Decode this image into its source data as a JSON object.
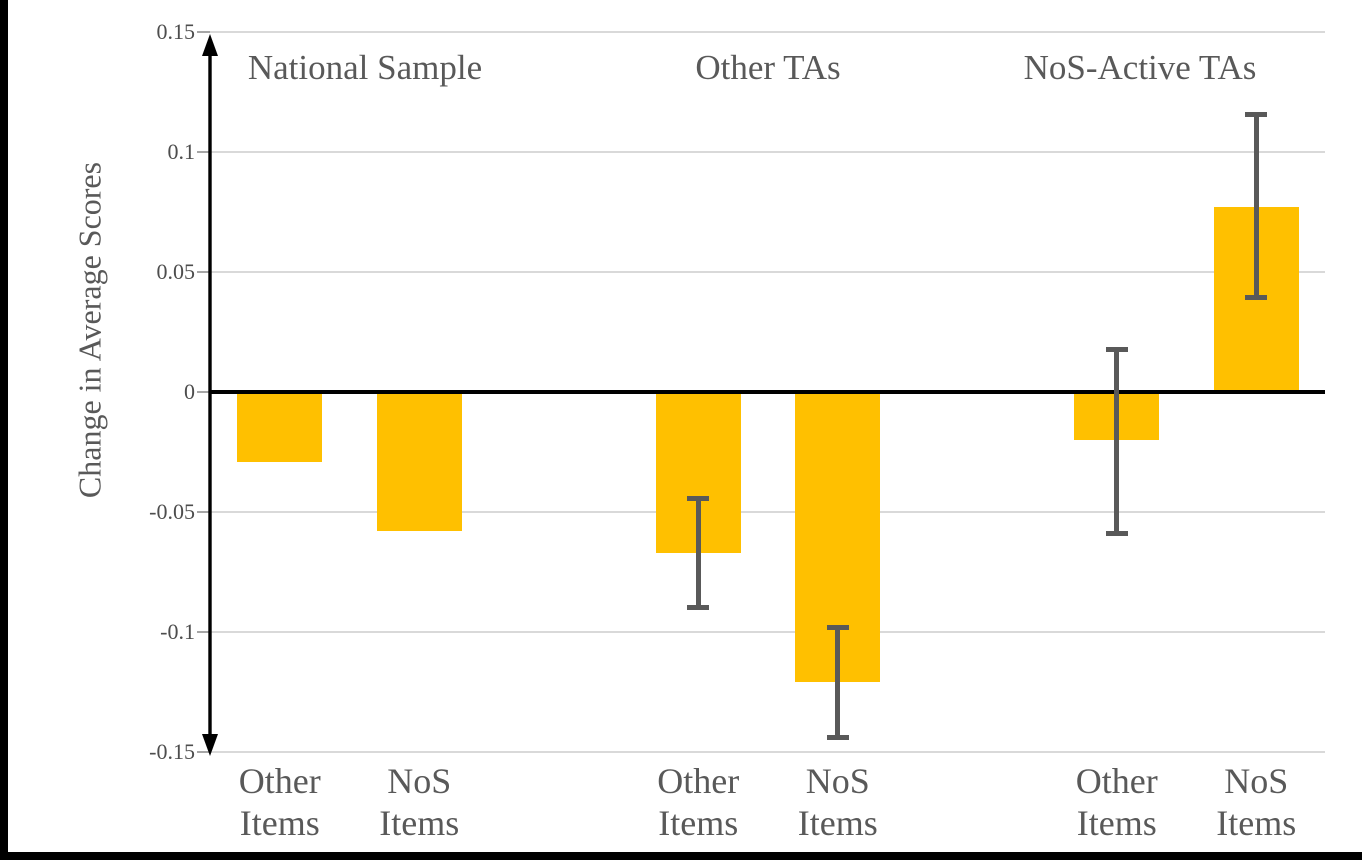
{
  "chart_data": {
    "type": "bar",
    "title": "",
    "xlabel": "",
    "ylabel": "Change in Average Scores",
    "ylim": [
      -0.15,
      0.15
    ],
    "grid": true,
    "legend": "none",
    "bar_color": "#FFC000",
    "error_bar_color": "#595959",
    "gridline_color": "#d9d9d9",
    "text_color": "#595959",
    "yticks": [
      {
        "value": 0.15,
        "label": "0.15"
      },
      {
        "value": 0.1,
        "label": "0.1"
      },
      {
        "value": 0.05,
        "label": "0.05"
      },
      {
        "value": 0,
        "label": "0"
      },
      {
        "value": -0.05,
        "label": "-0.05"
      },
      {
        "value": -0.1,
        "label": "-0.1"
      },
      {
        "value": -0.15,
        "label": "-0.15"
      }
    ],
    "groups": [
      {
        "label": "National Sample",
        "bars": [
          {
            "label": "Other Items",
            "value": -0.029,
            "error_low": null,
            "error_high": null
          },
          {
            "label": "NoS Items",
            "value": -0.058,
            "error_low": null,
            "error_high": null
          }
        ]
      },
      {
        "label": "Other TAs",
        "bars": [
          {
            "label": "Other Items",
            "value": -0.067,
            "error_low": -0.09,
            "error_high": -0.044
          },
          {
            "label": "NoS Items",
            "value": -0.121,
            "error_low": -0.144,
            "error_high": -0.098
          }
        ]
      },
      {
        "label": "NoS-Active TAs",
        "bars": [
          {
            "label": "Other Items",
            "value": -0.02,
            "error_low": -0.059,
            "error_high": 0.018
          },
          {
            "label": "NoS Items",
            "value": 0.077,
            "error_low": 0.039,
            "error_high": 0.116
          }
        ]
      }
    ]
  }
}
